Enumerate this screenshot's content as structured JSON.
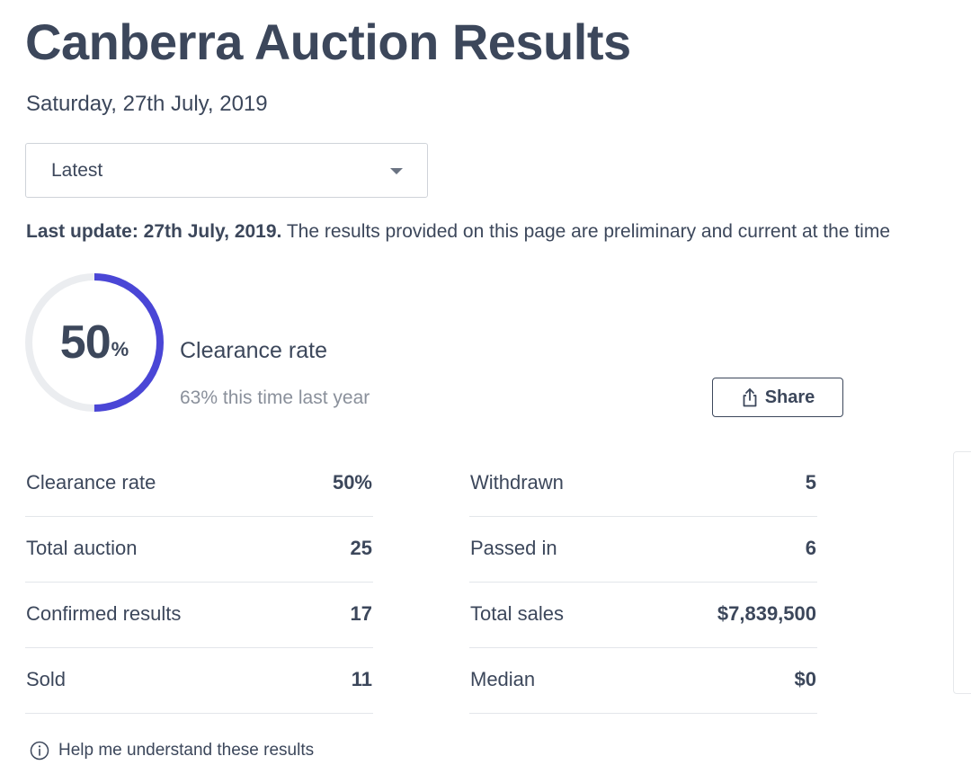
{
  "header": {
    "title": "Canberra Auction Results",
    "date": "Saturday, 27th July, 2019"
  },
  "filter": {
    "selected": "Latest"
  },
  "update": {
    "bold_text": "Last update: 27th July, 2019.",
    "text": " The results provided on this page are preliminary and current at the time"
  },
  "clearance": {
    "value": "50",
    "unit": "%",
    "fraction": 0.5,
    "label": "Clearance rate",
    "comparison": "63% this time last year",
    "ring_color": "#4a46d6",
    "track_color": "#ebedf0"
  },
  "share": {
    "label": "Share",
    "icon": "share-icon"
  },
  "stats_left": [
    {
      "label": "Clearance rate",
      "value": "50%"
    },
    {
      "label": "Total auction",
      "value": "25"
    },
    {
      "label": "Confirmed results",
      "value": "17"
    },
    {
      "label": "Sold",
      "value": "11"
    }
  ],
  "stats_right": [
    {
      "label": "Withdrawn",
      "value": "5"
    },
    {
      "label": "Passed in",
      "value": "6"
    },
    {
      "label": "Total sales",
      "value": "$7,839,500"
    },
    {
      "label": "Median",
      "value": "$0"
    }
  ],
  "help": {
    "label": "Help me understand these results",
    "icon": "info-icon"
  }
}
